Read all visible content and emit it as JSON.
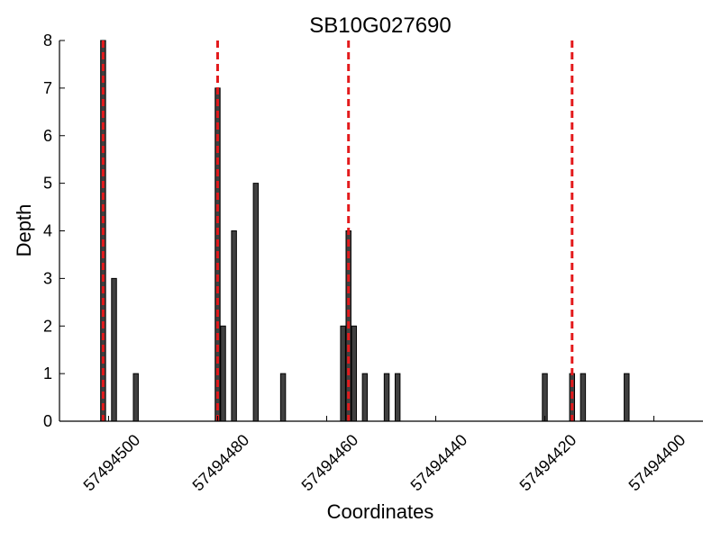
{
  "chart_data": {
    "type": "bar",
    "title": "SB10G027690",
    "xlabel": "Coordinates",
    "ylabel": "Depth",
    "xlim": [
      57494509,
      57494391
    ],
    "ylim": [
      0,
      8
    ],
    "x_reversed": true,
    "x_ticks": [
      57494500,
      57494480,
      57494460,
      57494440,
      57494420,
      57494400
    ],
    "y_ticks": [
      0,
      1,
      2,
      3,
      4,
      5,
      6,
      7,
      8
    ],
    "grid": false,
    "bar_color": "#404040",
    "reference_line_color": "#e31a1c",
    "reference_lines": [
      57494501,
      57494480,
      57494456,
      57494415
    ],
    "bars": [
      {
        "x": 57494501,
        "y": 8
      },
      {
        "x": 57494499,
        "y": 3
      },
      {
        "x": 57494495,
        "y": 1
      },
      {
        "x": 57494480,
        "y": 7
      },
      {
        "x": 57494479,
        "y": 2
      },
      {
        "x": 57494477,
        "y": 4
      },
      {
        "x": 57494473,
        "y": 5
      },
      {
        "x": 57494468,
        "y": 1
      },
      {
        "x": 57494457,
        "y": 2
      },
      {
        "x": 57494456,
        "y": 4
      },
      {
        "x": 57494455,
        "y": 2
      },
      {
        "x": 57494453,
        "y": 1
      },
      {
        "x": 57494449,
        "y": 1
      },
      {
        "x": 57494447,
        "y": 1
      },
      {
        "x": 57494420,
        "y": 1
      },
      {
        "x": 57494415,
        "y": 1
      },
      {
        "x": 57494413,
        "y": 1
      },
      {
        "x": 57494405,
        "y": 1
      }
    ]
  }
}
